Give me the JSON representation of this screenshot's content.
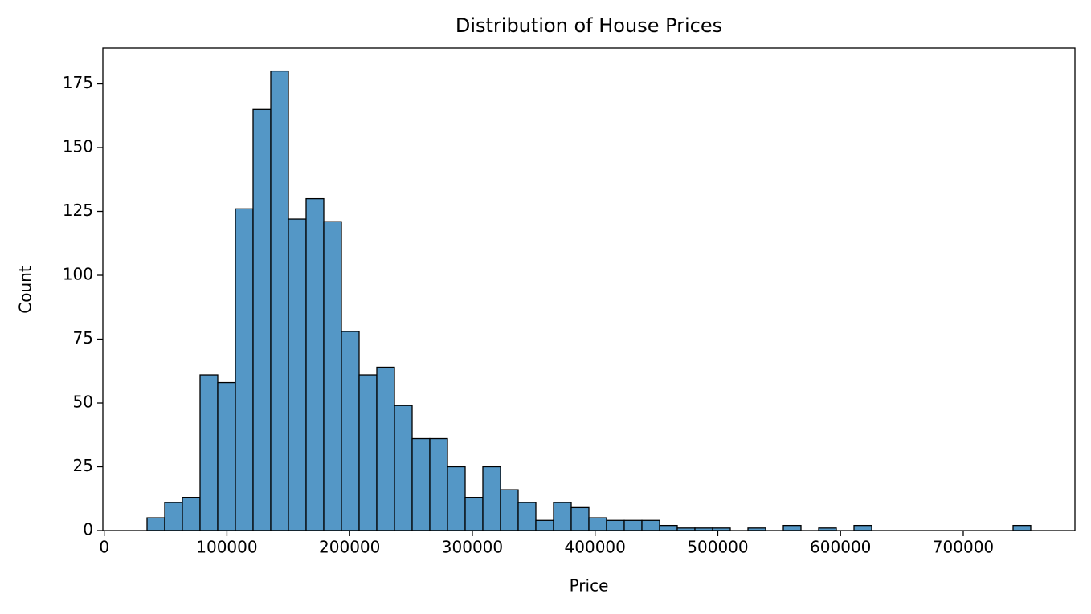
{
  "chart_data": {
    "type": "histogram",
    "title": "Distribution of House Prices",
    "x_label": "Price",
    "y_label": "Count",
    "bins": [
      34900,
      49302,
      63704,
      78106,
      92508,
      106910,
      121312,
      135714,
      150116,
      164518,
      178920,
      193322,
      207724,
      222126,
      236528,
      250930,
      265332,
      279734,
      294136,
      308538,
      322940,
      337342,
      351744,
      366146,
      380548,
      394950,
      409352,
      423754,
      438156,
      452558,
      466960,
      481362,
      495764,
      510166,
      524568,
      538970,
      553372,
      567774,
      582176,
      596578,
      610980,
      625382,
      639784,
      654186,
      668588,
      682990,
      697392,
      711794,
      726196,
      740598,
      755000
    ],
    "counts": [
      5,
      11,
      13,
      61,
      58,
      126,
      165,
      180,
      122,
      130,
      121,
      78,
      61,
      64,
      49,
      36,
      36,
      25,
      13,
      25,
      16,
      11,
      4,
      11,
      9,
      5,
      4,
      4,
      4,
      2,
      1,
      1,
      1,
      0,
      1,
      0,
      2,
      0,
      1,
      0,
      2,
      0,
      0,
      0,
      0,
      0,
      0,
      0,
      0,
      2
    ],
    "color": "#5497c6",
    "edgecolor": "#000000",
    "xlim": [
      -1105,
      791005
    ],
    "ylim": [
      0,
      189
    ],
    "xticks": [
      0,
      100000,
      200000,
      300000,
      400000,
      500000,
      600000,
      700000
    ],
    "yticks": [
      0,
      25,
      50,
      75,
      100,
      125,
      150,
      175
    ]
  }
}
